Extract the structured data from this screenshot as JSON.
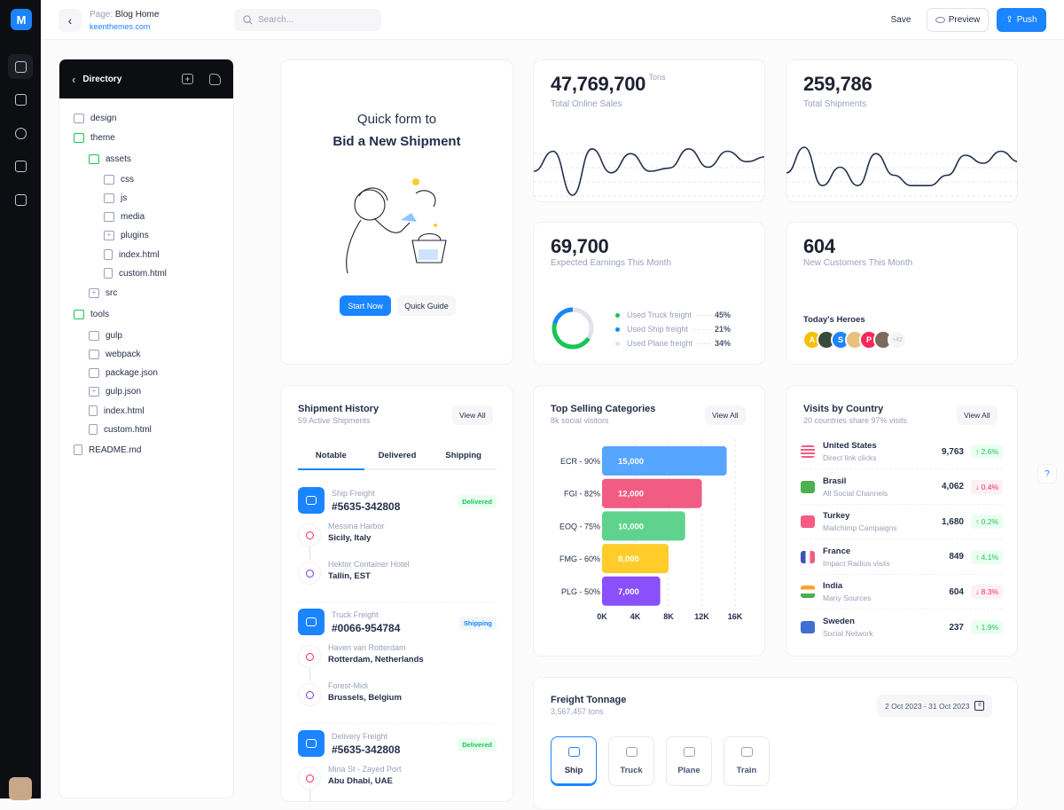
{
  "header": {
    "page_prefix": "Page:",
    "page_name": "Blog Home",
    "site": "keenthemes.com",
    "search_placeholder": "Search...",
    "save": "Save",
    "preview": "Preview",
    "push": "Push"
  },
  "rail": {
    "logo": "M",
    "icons": [
      "home-icon",
      "profile-card-icon",
      "lifebuoy-icon",
      "layers-icon",
      "briefcase-icon"
    ]
  },
  "directory": {
    "title": "Directory",
    "items": [
      {
        "label": "design",
        "level": 0,
        "type": "folder"
      },
      {
        "label": "theme",
        "level": 0,
        "type": "folder-open"
      },
      {
        "label": "assets",
        "level": 1,
        "type": "folder-open"
      },
      {
        "label": "css",
        "level": 2,
        "type": "folder"
      },
      {
        "label": "js",
        "level": 2,
        "type": "folder"
      },
      {
        "label": "media",
        "level": 2,
        "type": "folder"
      },
      {
        "label": "plugins",
        "level": 2,
        "type": "folder-plus"
      },
      {
        "label": "index.html",
        "level": 2,
        "type": "file"
      },
      {
        "label": "custom.html",
        "level": 2,
        "type": "file"
      },
      {
        "label": "src",
        "level": 1,
        "type": "folder-plus"
      },
      {
        "label": "tools",
        "level": 0,
        "type": "folder-open"
      },
      {
        "label": "gulp",
        "level": 1,
        "type": "folder"
      },
      {
        "label": "webpack",
        "level": 1,
        "type": "folder"
      },
      {
        "label": "package.json",
        "level": 1,
        "type": "folder"
      },
      {
        "label": "gulp.json",
        "level": 1,
        "type": "folder-plus"
      },
      {
        "label": "index.html",
        "level": 1,
        "type": "file"
      },
      {
        "label": "custom.html",
        "level": 1,
        "type": "file"
      },
      {
        "label": "README.md",
        "level": 0,
        "type": "file"
      }
    ]
  },
  "quickform": {
    "line1": "Quick form to",
    "line2": "Bid a New Shipment",
    "start": "Start Now",
    "guide": "Quick Guide"
  },
  "sales": {
    "value": "47,769,700",
    "unit": "Tons",
    "label": "Total Online Sales",
    "sparkline": [
      40,
      65,
      10,
      68,
      38,
      62,
      40,
      44,
      68,
      45,
      65,
      52,
      58
    ]
  },
  "shipments": {
    "value": "259,786",
    "label": "Total Shipments",
    "sparkline": [
      38,
      70,
      22,
      45,
      22,
      62,
      35,
      22,
      22,
      35,
      60,
      50,
      65,
      52
    ]
  },
  "earnings": {
    "value": "69,700",
    "label": "Expected Earnings This Month",
    "legend": [
      {
        "label": "Used Truck freight",
        "value": "45%",
        "color": "#17c653",
        "pct": 45
      },
      {
        "label": "Used Ship freight",
        "value": "21%",
        "color": "#1b84ff",
        "pct": 21
      },
      {
        "label": "Used Plane freight",
        "value": "34%",
        "color": "#e1e3ea",
        "pct": 34
      }
    ]
  },
  "customers": {
    "value": "604",
    "label": "New Customers This Month",
    "heroes_title": "Today's Heroes",
    "avatars": [
      {
        "initial": "A",
        "color": "#f6c000"
      },
      {
        "initial": "",
        "color": "#3a4a3a"
      },
      {
        "initial": "S",
        "color": "#1b84ff"
      },
      {
        "initial": "",
        "color": "#e8c080"
      },
      {
        "initial": "P",
        "color": "#f8285a"
      },
      {
        "initial": "",
        "color": "#7a6a60"
      }
    ],
    "more": "+42"
  },
  "history": {
    "title": "Shipment History",
    "subtitle": "59 Active Shipments",
    "view_all": "View All",
    "tabs": [
      "Notable",
      "Delivered",
      "Shipping"
    ],
    "active_tab": 0,
    "items": [
      {
        "type": "Ship Freight",
        "id": "#5635-342808",
        "status": "Delivered",
        "from_name": "Messina Harbor",
        "from_place": "Sicily, Italy",
        "to_name": "Hektor Container Hotel",
        "to_place": "Tallin, EST"
      },
      {
        "type": "Truck Freight",
        "id": "#0066-954784",
        "status": "Shipping",
        "from_name": "Haven van Rotterdam",
        "from_place": "Rotterdam, Netherlands",
        "to_name": "Forest-Midi",
        "to_place": "Brussels, Belgium"
      },
      {
        "type": "Delivery Freight",
        "id": "#5635-342808",
        "status": "Delivered",
        "from_name": "Mina St - Zayed Port",
        "from_place": "Abu Dhabi, UAE"
      }
    ]
  },
  "categories": {
    "title": "Top Selling Categories",
    "subtitle": "8k social visitors",
    "view_all": "View All"
  },
  "chart_data": {
    "type": "bar",
    "orientation": "horizontal",
    "categories": [
      "ECR - 90%",
      "FGI - 82%",
      "EOQ - 75%",
      "FMG - 60%",
      "PLG - 50%"
    ],
    "values": [
      15000,
      12000,
      10000,
      8000,
      7000
    ],
    "data_labels": [
      "15,000",
      "12,000",
      "10,000",
      "8,000",
      "7,000"
    ],
    "colors": [
      "#56a5ff",
      "#f25b83",
      "#5fd38d",
      "#ffcc29",
      "#8950fc"
    ],
    "xlim": [
      0,
      16000
    ],
    "x_ticks": [
      "0K",
      "4K",
      "8K",
      "12K",
      "16K"
    ],
    "grid": true
  },
  "visits": {
    "title": "Visits by Country",
    "subtitle": "20 countries share 97% visits",
    "view_all": "View All",
    "rows": [
      {
        "country": "United States",
        "source": "Direct link clicks",
        "value": "9,763",
        "change": "2.6%",
        "dir": "up"
      },
      {
        "country": "Brasil",
        "source": "All Social Channels",
        "value": "4,062",
        "change": "0.4%",
        "dir": "down"
      },
      {
        "country": "Turkey",
        "source": "Mailchimp Campaigns",
        "value": "1,680",
        "change": "0.2%",
        "dir": "up"
      },
      {
        "country": "France",
        "source": "Impact Radius visits",
        "value": "849",
        "change": "4.1%",
        "dir": "up"
      },
      {
        "country": "India",
        "source": "Many Sources",
        "value": "604",
        "change": "8.3%",
        "dir": "down"
      },
      {
        "country": "Sweden",
        "source": "Social Network",
        "value": "237",
        "change": "1.9%",
        "dir": "up"
      }
    ]
  },
  "tonnage": {
    "title": "Freight Tonnage",
    "subtitle": "3,567,457 tons",
    "date_range": "2 Oct 2023 - 31 Oct 2023",
    "tabs": [
      "Ship",
      "Truck",
      "Plane",
      "Train"
    ],
    "active_tab": 0
  }
}
